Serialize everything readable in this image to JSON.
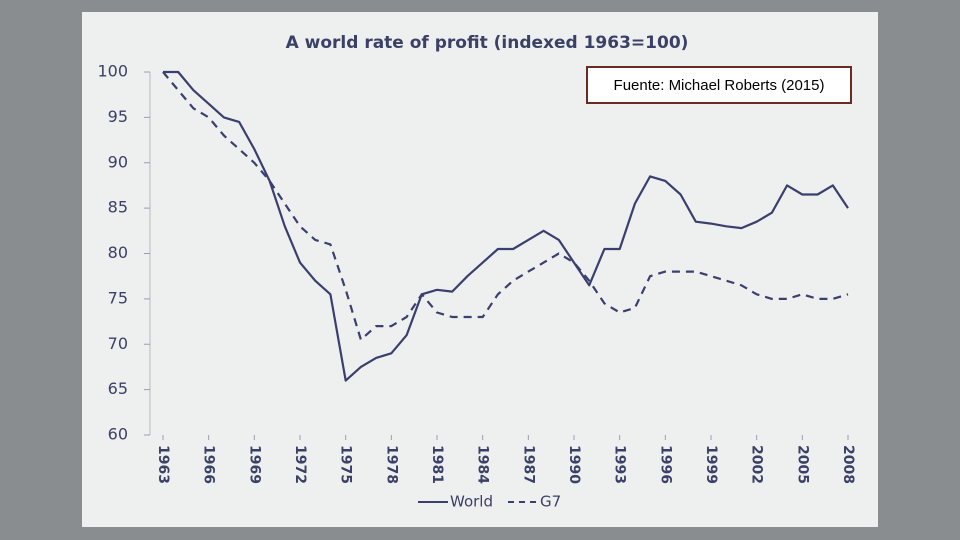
{
  "chart_data": {
    "type": "line",
    "title": "A world rate of profit (indexed 1963=100)",
    "annotation": "Fuente: Michael Roberts (2015)",
    "x": [
      1963,
      1964,
      1965,
      1966,
      1967,
      1968,
      1969,
      1970,
      1971,
      1972,
      1973,
      1974,
      1975,
      1976,
      1977,
      1978,
      1979,
      1980,
      1981,
      1982,
      1983,
      1984,
      1985,
      1986,
      1987,
      1988,
      1989,
      1990,
      1991,
      1992,
      1993,
      1994,
      1995,
      1996,
      1997,
      1998,
      1999,
      2000,
      2001,
      2002,
      2003,
      2004,
      2005,
      2006,
      2007,
      2008
    ],
    "series": [
      {
        "name": "World",
        "color": "#3a3f6e",
        "linestyle": "solid",
        "values": [
          100,
          100,
          98,
          96.5,
          95,
          94.5,
          91.5,
          88,
          83,
          79,
          77,
          75.5,
          66,
          67.5,
          68.5,
          69,
          71,
          75.5,
          76,
          75.8,
          77.5,
          79,
          80.5,
          80.5,
          81.5,
          82.5,
          81.5,
          79,
          76.5,
          80.5,
          80.5,
          85.5,
          88.5,
          88,
          86.5,
          83.5,
          83.3,
          83,
          82.8,
          83.5,
          84.5,
          87.5,
          86.5,
          86.5,
          87.5,
          85
        ]
      },
      {
        "name": "G7",
        "color": "#3a3f6e",
        "linestyle": "dashed",
        "values": [
          100,
          98,
          96,
          95,
          93,
          91.5,
          90,
          88,
          85.5,
          83,
          81.5,
          81,
          76,
          70.5,
          72,
          72,
          73,
          75.5,
          73.5,
          73,
          73,
          73,
          75.5,
          77,
          78,
          79,
          80,
          79,
          77,
          74.5,
          73.5,
          74,
          77.5,
          78,
          78,
          78,
          77.5,
          77,
          76.5,
          75.5,
          75,
          75,
          75.5,
          75,
          75,
          75.5
        ]
      }
    ],
    "xlim": [
      1963,
      2008
    ],
    "xticks": [
      1963,
      1966,
      1969,
      1972,
      1975,
      1978,
      1981,
      1984,
      1987,
      1990,
      1993,
      1996,
      1999,
      2002,
      2005,
      2008
    ],
    "ylim": [
      60,
      100
    ],
    "yticks": [
      60,
      65,
      70,
      75,
      80,
      85,
      90,
      95,
      100
    ],
    "grid": false
  }
}
